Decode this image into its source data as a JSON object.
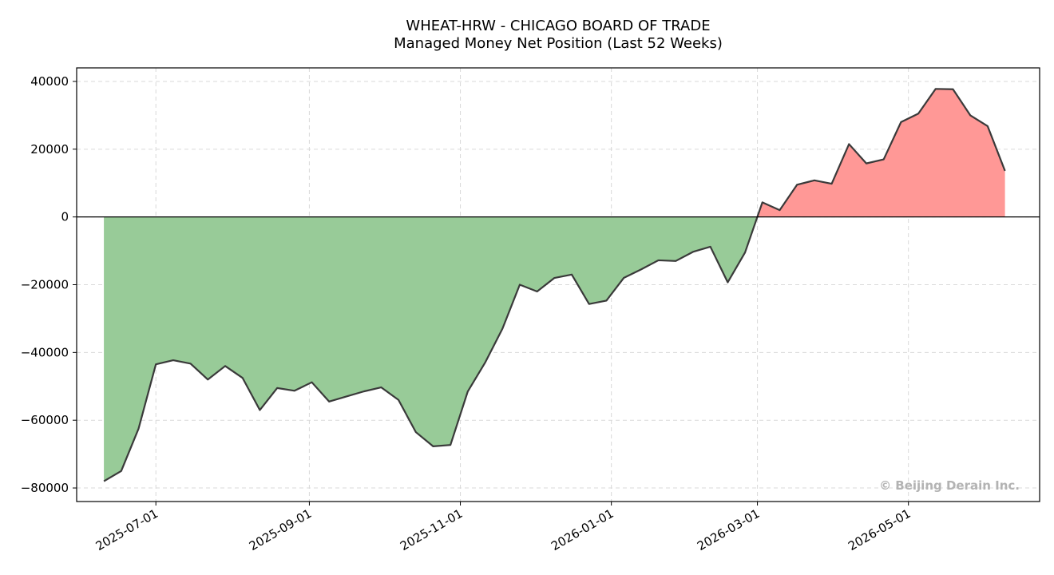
{
  "chart_data": {
    "type": "area",
    "title": "WHEAT-HRW - CHICAGO BOARD OF TRADE",
    "subtitle": "Managed Money Net Position (Last 52 Weeks)",
    "xlabel": "",
    "ylabel": "",
    "ylim": [
      -84000,
      44000
    ],
    "xlim": [
      "2025-05-30",
      "2026-06-23"
    ],
    "y_ticks": [
      40000,
      20000,
      0,
      -20000,
      -40000,
      -60000,
      -80000
    ],
    "y_tick_labels": [
      "40000",
      "20000",
      "0",
      "−20000",
      "−40000",
      "−60000",
      "−80000"
    ],
    "x_ticks": [
      "2025-07-01",
      "2025-09-01",
      "2025-11-01",
      "2026-01-01",
      "2026-03-01",
      "2026-05-01"
    ],
    "grid": true,
    "positive_color": "#ff9896",
    "negative_color": "#98cb98",
    "line_color": "#3a3a3a",
    "x": [
      "2025-06-10",
      "2025-06-17",
      "2025-06-24",
      "2025-07-01",
      "2025-07-08",
      "2025-07-15",
      "2025-07-22",
      "2025-07-29",
      "2025-08-05",
      "2025-08-12",
      "2025-08-19",
      "2025-08-26",
      "2025-09-02",
      "2025-09-09",
      "2025-09-16",
      "2025-09-23",
      "2025-09-30",
      "2025-10-07",
      "2025-10-14",
      "2025-10-21",
      "2025-10-28",
      "2025-11-04",
      "2025-11-11",
      "2025-11-18",
      "2025-11-25",
      "2025-12-02",
      "2025-12-09",
      "2025-12-16",
      "2025-12-23",
      "2025-12-30",
      "2026-01-06",
      "2026-01-13",
      "2026-01-20",
      "2026-01-27",
      "2026-02-03",
      "2026-02-10",
      "2026-02-17",
      "2026-02-24",
      "2026-03-03",
      "2026-03-10",
      "2026-03-17",
      "2026-03-24",
      "2026-03-31",
      "2026-04-07",
      "2026-04-14",
      "2026-04-21",
      "2026-04-28",
      "2026-05-05",
      "2026-05-12",
      "2026-05-19",
      "2026-05-26",
      "2026-06-02",
      "2026-06-09"
    ],
    "values": [
      -78000,
      -75000,
      -62500,
      -43500,
      -42300,
      -43300,
      -48000,
      -44000,
      -47500,
      -57000,
      -50500,
      -51300,
      -48800,
      -54500,
      -53000,
      -51500,
      -50300,
      -54000,
      -63500,
      -67700,
      -67300,
      -51500,
      -43000,
      -33000,
      -20000,
      -22000,
      -18000,
      -17000,
      -25700,
      -24700,
      -18000,
      -15500,
      -12800,
      -13000,
      -10300,
      -8800,
      -19300,
      -10500,
      4300,
      2000,
      9500,
      10800,
      9800,
      21500,
      15800,
      17000,
      28000,
      30500,
      37800,
      37700,
      30000,
      26800,
      13600
    ],
    "watermark": "© Beijing Derain Inc."
  }
}
